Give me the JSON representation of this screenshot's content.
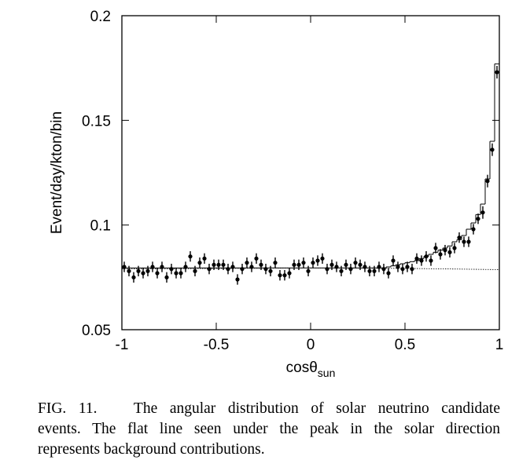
{
  "chart_data": {
    "type": "histogram-points",
    "ylabel": "Event/day/kton/bin",
    "xlabel": "cosθ",
    "xlabel_sub": "sun",
    "xlim": [
      -1,
      1
    ],
    "ylim": [
      0.05,
      0.2
    ],
    "xticks": [
      -1,
      -0.5,
      0,
      0.5,
      1
    ],
    "yticks": [
      0.05,
      0.1,
      0.15,
      0.2
    ],
    "color": "#000000",
    "bins": [
      -1,
      -0.975,
      -0.95,
      -0.925,
      -0.9,
      -0.875,
      -0.85,
      -0.825,
      -0.8,
      -0.775,
      -0.75,
      -0.725,
      -0.7,
      -0.675,
      -0.65,
      -0.625,
      -0.6,
      -0.575,
      -0.55,
      -0.525,
      -0.5,
      -0.475,
      -0.45,
      -0.425,
      -0.4,
      -0.375,
      -0.35,
      -0.325,
      -0.3,
      -0.275,
      -0.25,
      -0.225,
      -0.2,
      -0.175,
      -0.15,
      -0.125,
      -0.1,
      -0.075,
      -0.05,
      -0.025,
      0,
      0.025,
      0.05,
      0.075,
      0.1,
      0.125,
      0.15,
      0.175,
      0.2,
      0.225,
      0.25,
      0.275,
      0.3,
      0.325,
      0.35,
      0.375,
      0.4,
      0.425,
      0.45,
      0.475,
      0.5,
      0.525,
      0.55,
      0.575,
      0.6,
      0.625,
      0.65,
      0.675,
      0.7,
      0.725,
      0.75,
      0.775,
      0.8,
      0.825,
      0.85,
      0.875,
      0.9,
      0.925,
      0.95,
      0.975,
      1
    ],
    "values": [
      0.08,
      0.078,
      0.075,
      0.078,
      0.077,
      0.078,
      0.08,
      0.077,
      0.08,
      0.075,
      0.079,
      0.077,
      0.077,
      0.08,
      0.085,
      0.078,
      0.082,
      0.084,
      0.079,
      0.081,
      0.081,
      0.081,
      0.079,
      0.08,
      0.074,
      0.079,
      0.082,
      0.08,
      0.084,
      0.081,
      0.079,
      0.078,
      0.082,
      0.076,
      0.076,
      0.077,
      0.081,
      0.081,
      0.082,
      0.078,
      0.082,
      0.083,
      0.084,
      0.079,
      0.081,
      0.08,
      0.078,
      0.081,
      0.079,
      0.082,
      0.081,
      0.08,
      0.078,
      0.078,
      0.08,
      0.079,
      0.077,
      0.083,
      0.08,
      0.079,
      0.08,
      0.079,
      0.084,
      0.083,
      0.085,
      0.083,
      0.089,
      0.086,
      0.088,
      0.087,
      0.089,
      0.094,
      0.092,
      0.092,
      0.098,
      0.103,
      0.106,
      0.121,
      0.136,
      0.173
    ],
    "errors": [
      0.0025,
      0.0025,
      0.0025,
      0.0025,
      0.0025,
      0.0025,
      0.0025,
      0.0025,
      0.0025,
      0.0025,
      0.0025,
      0.0025,
      0.0025,
      0.0025,
      0.0025,
      0.0025,
      0.0025,
      0.0025,
      0.0025,
      0.0025,
      0.0025,
      0.0025,
      0.0025,
      0.0025,
      0.0025,
      0.0025,
      0.0025,
      0.0025,
      0.0025,
      0.0025,
      0.0025,
      0.0025,
      0.0025,
      0.0025,
      0.0025,
      0.0025,
      0.0025,
      0.0025,
      0.0025,
      0.0025,
      0.0025,
      0.0025,
      0.0025,
      0.0025,
      0.0025,
      0.0025,
      0.0025,
      0.0025,
      0.0025,
      0.0025,
      0.0025,
      0.0025,
      0.0025,
      0.0025,
      0.0025,
      0.0025,
      0.0025,
      0.0025,
      0.0025,
      0.0025,
      0.0025,
      0.0025,
      0.0025,
      0.0025,
      0.0025,
      0.0025,
      0.0025,
      0.0025,
      0.0025,
      0.0025,
      0.0025,
      0.0025,
      0.0025,
      0.0025,
      0.0025,
      0.0025,
      0.003,
      0.003,
      0.003,
      0.003
    ],
    "expected": [
      0.0795,
      0.0795,
      0.0795,
      0.0795,
      0.0795,
      0.0795,
      0.0795,
      0.0795,
      0.0795,
      0.0795,
      0.0795,
      0.0795,
      0.0795,
      0.0795,
      0.0795,
      0.0795,
      0.0795,
      0.0795,
      0.0795,
      0.0795,
      0.0795,
      0.0795,
      0.0795,
      0.0795,
      0.0795,
      0.0795,
      0.0795,
      0.0795,
      0.0795,
      0.0795,
      0.0795,
      0.0795,
      0.0795,
      0.0795,
      0.0795,
      0.0795,
      0.0795,
      0.0795,
      0.0795,
      0.0795,
      0.0795,
      0.0795,
      0.0795,
      0.0795,
      0.0795,
      0.0795,
      0.0795,
      0.0795,
      0.0795,
      0.0795,
      0.0795,
      0.0795,
      0.0795,
      0.0795,
      0.0795,
      0.0795,
      0.08,
      0.0805,
      0.081,
      0.0815,
      0.082,
      0.0825,
      0.083,
      0.084,
      0.085,
      0.086,
      0.087,
      0.088,
      0.089,
      0.09,
      0.092,
      0.093,
      0.095,
      0.098,
      0.101,
      0.105,
      0.11,
      0.122,
      0.14,
      0.177
    ],
    "background": {
      "x": [
        -1,
        0,
        0.5,
        1
      ],
      "values": [
        0.079,
        0.0795,
        0.0793,
        0.0787
      ]
    }
  },
  "caption": [
    "FIG. 11.   The angular distribution of solar neutrino candidate",
    "events. The flat line seen under the peak in the solar direction",
    "represents background contributions."
  ]
}
